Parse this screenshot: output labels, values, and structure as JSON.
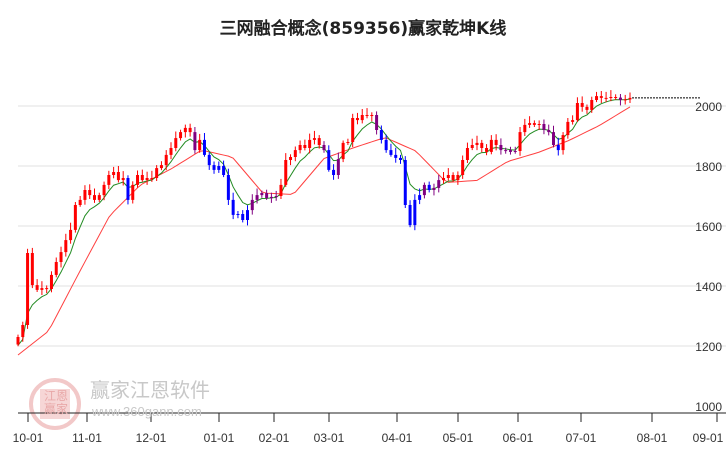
{
  "title": "三网融合概念(859356)赢家乾坤K线",
  "watermark": {
    "seal_text": "江恩赢家",
    "brand": "赢家江恩软件",
    "url": "www.360gann.com"
  },
  "colors": {
    "up": "#ff0000",
    "down": "#0000ff",
    "mixed": "#800080",
    "ma_short": "#228b22",
    "ma_long": "#ff4040",
    "grid": "#e0e0e0"
  },
  "chart_data": {
    "type": "candlestick",
    "title": "三网融合概念(859356)赢家乾坤K线",
    "ylim": [
      1000,
      2200
    ],
    "y_ticks": [
      1000,
      1200,
      1400,
      1600,
      1800,
      2000
    ],
    "y_tick_labels": [
      "1000",
      "1200",
      "1400",
      "1600",
      "1800",
      "2000"
    ],
    "x_tick_labels": [
      "10-01",
      "11-01",
      "12-01",
      "01-01",
      "02-01",
      "03-01",
      "04-01",
      "05-01",
      "06-01",
      "07-01",
      "08-01",
      "09-01"
    ],
    "grid": true,
    "last_price_line": 2027,
    "closes": [
      1230,
      1270,
      1510,
      1403,
      1387,
      1393,
      1390,
      1437,
      1480,
      1513,
      1553,
      1587,
      1670,
      1687,
      1720,
      1703,
      1687,
      1703,
      1737,
      1770,
      1780,
      1753,
      1760,
      1687,
      1737,
      1770,
      1753,
      1760,
      1760,
      1793,
      1803,
      1837,
      1860,
      1893,
      1913,
      1927,
      1913,
      1853,
      1887,
      1837,
      1803,
      1787,
      1800,
      1770,
      1687,
      1637,
      1640,
      1620,
      1653,
      1687,
      1703,
      1710,
      1693,
      1697,
      1700,
      1737,
      1820,
      1830,
      1853,
      1870,
      1860,
      1887,
      1893,
      1870,
      1853,
      1787,
      1770,
      1823,
      1877,
      1880,
      1960,
      1953,
      1970,
      1967,
      1970,
      1920,
      1887,
      1853,
      1837,
      1827,
      1820,
      1670,
      1603,
      1687,
      1703,
      1737,
      1720,
      1727,
      1753,
      1760,
      1770,
      1753,
      1770,
      1820,
      1860,
      1870,
      1877,
      1860,
      1847,
      1887,
      1870,
      1853,
      1853,
      1847,
      1850,
      1913,
      1937,
      1943,
      1937,
      1940,
      1920,
      1913,
      1870,
      1853,
      1903,
      1947,
      1953,
      2010,
      1997,
      1987,
      2020,
      2033,
      2027,
      2027,
      2030,
      2028,
      2020,
      2022,
      2027
    ],
    "ma_long": [
      1170,
      1250,
      1445,
      1635,
      1737,
      1790,
      1853,
      1830,
      1710,
      1705,
      1825,
      1862,
      1895,
      1850,
      1745,
      1752,
      1815,
      1845,
      1885,
      1935,
      1997
    ]
  }
}
